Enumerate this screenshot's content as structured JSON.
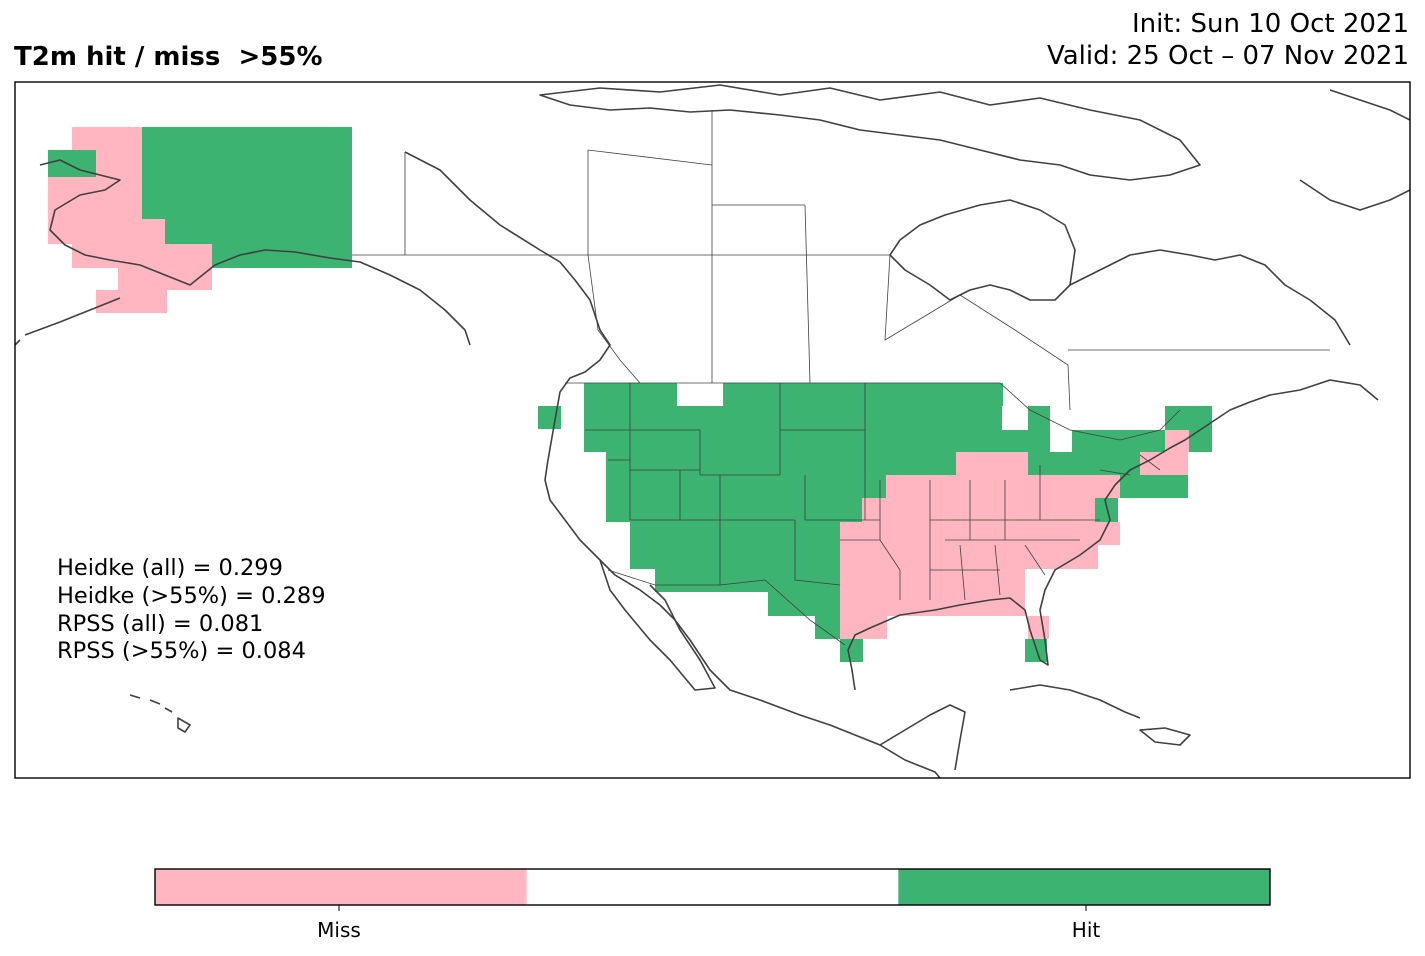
{
  "title": {
    "main": "T2m hit / miss  >55%",
    "init": "Init: Sun 10 Oct 2021",
    "valid": "Valid: 25 Oct – 07 Nov 2021"
  },
  "stats": [
    "Heidke (all) = 0.299",
    "Heidke (>55%) = 0.289",
    "RPSS (all) = 0.081",
    "RPSS (>55%) = 0.084"
  ],
  "colors": {
    "hit": "#3cb371",
    "miss": "#ffb6c1",
    "neutral": "#ffffff",
    "coast": "#404040"
  },
  "colorbar": {
    "labels": [
      "Miss",
      "Hit"
    ],
    "classes": [
      "miss",
      "neutral",
      "hit"
    ]
  },
  "regions_shown": {
    "hit": [
      "western and central United States",
      "northern Great Lakes",
      "Texas",
      "New England",
      "Florida peninsula (south)",
      "central and northern Alaska"
    ],
    "miss": [
      "southeastern United States",
      "Ohio Valley",
      "mid-Atlantic",
      "western Alaska"
    ]
  }
}
